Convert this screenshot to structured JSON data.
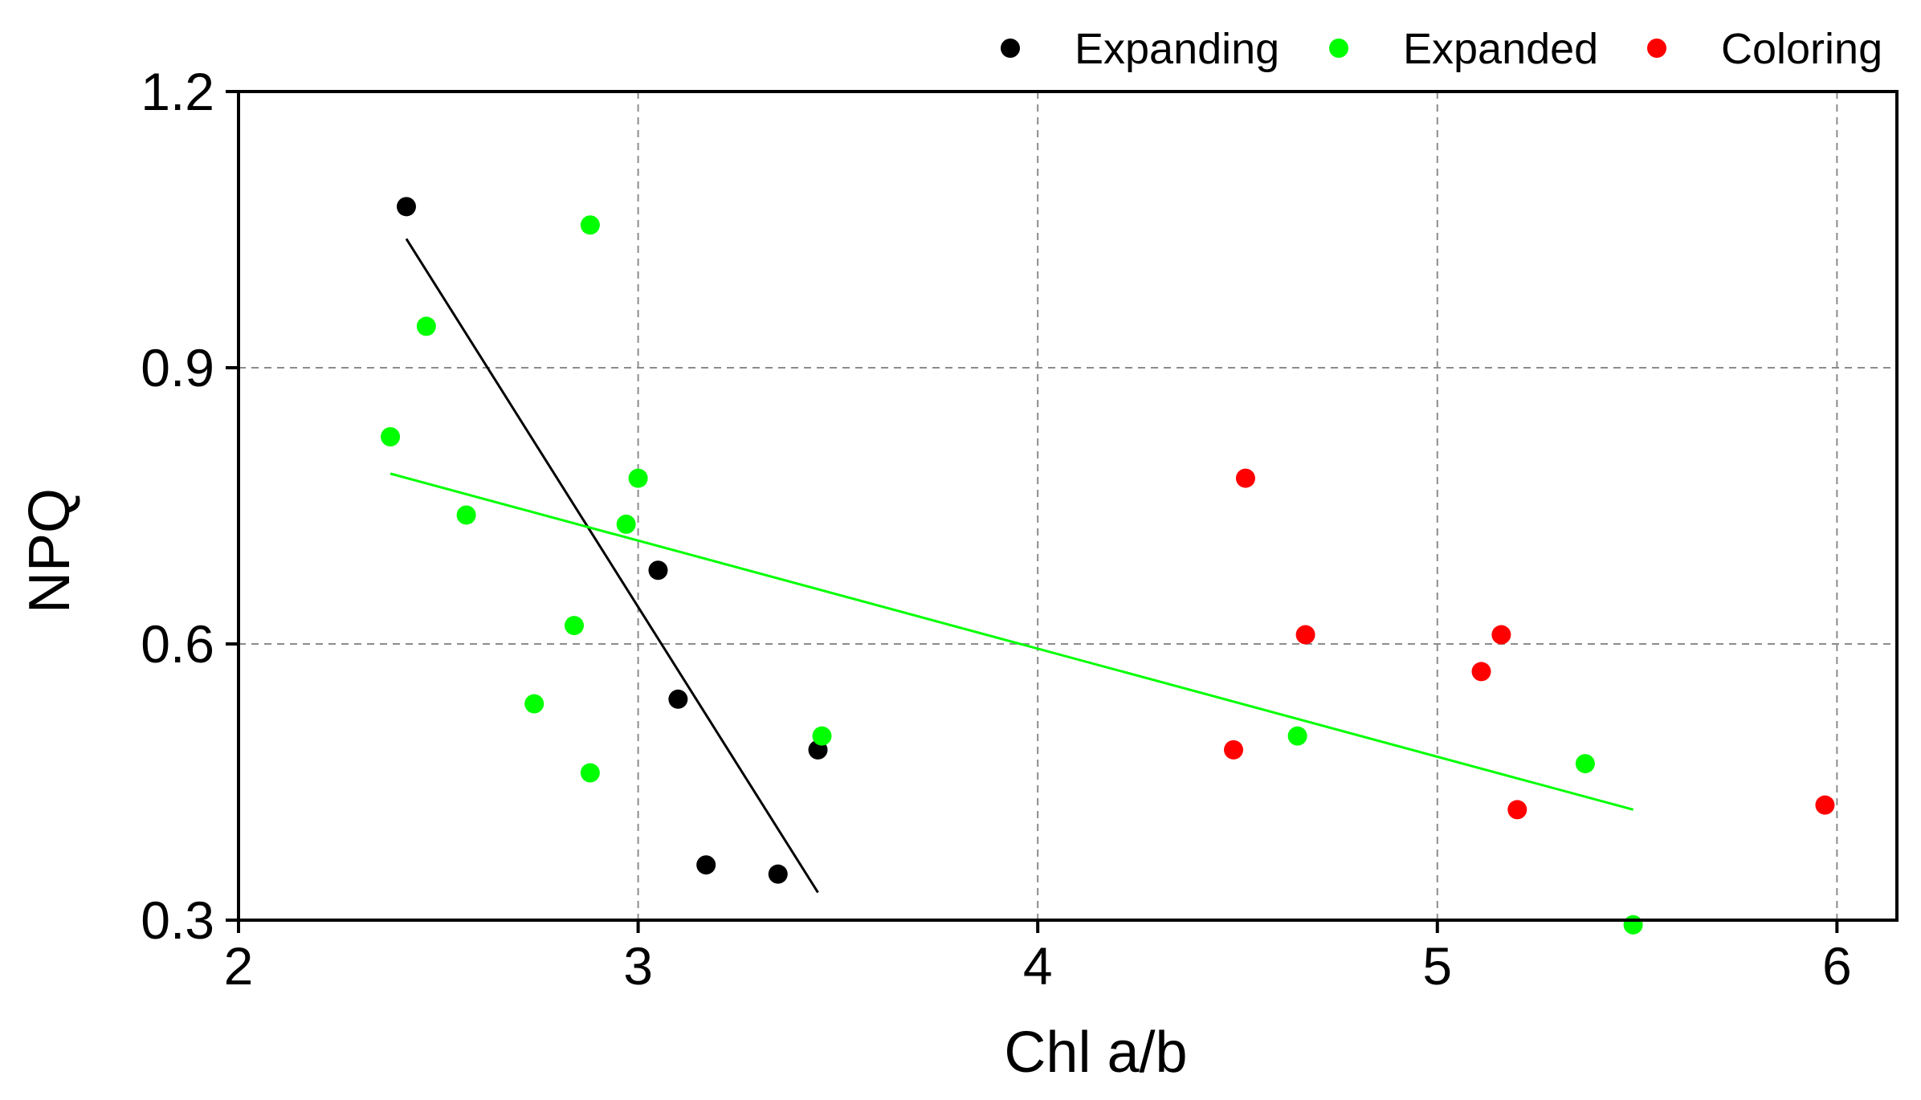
{
  "chart_data": {
    "type": "scatter",
    "title": "",
    "xlabel": "Chl a/b",
    "ylabel": "NPQ",
    "xlim": [
      2,
      6.15
    ],
    "ylim": [
      0.3,
      1.2
    ],
    "xticks": [
      2,
      3,
      4,
      5,
      6
    ],
    "yticks": [
      0.3,
      0.6,
      0.9,
      1.2
    ],
    "xtick_labels": [
      "2",
      "3",
      "4",
      "5",
      "6"
    ],
    "ytick_labels": [
      "0.3",
      "0.6",
      "0.9",
      "1.2"
    ],
    "grid": true,
    "legend_position": "top-right",
    "series": [
      {
        "name": "Expanding",
        "color": "#000000",
        "points": [
          [
            2.42,
            1.075
          ],
          [
            3.05,
            0.68
          ],
          [
            3.1,
            0.54
          ],
          [
            3.17,
            0.36
          ],
          [
            3.35,
            0.35
          ],
          [
            3.45,
            0.485
          ]
        ],
        "fit": [
          [
            2.42,
            1.04
          ],
          [
            3.45,
            0.33
          ]
        ]
      },
      {
        "name": "Expanded",
        "color": "#00ff00",
        "points": [
          [
            2.38,
            0.825
          ],
          [
            2.47,
            0.945
          ],
          [
            2.57,
            0.74
          ],
          [
            2.74,
            0.535
          ],
          [
            2.84,
            0.62
          ],
          [
            2.88,
            1.055
          ],
          [
            2.88,
            0.46
          ],
          [
            2.97,
            0.73
          ],
          [
            3.0,
            0.78
          ],
          [
            3.46,
            0.5
          ],
          [
            4.65,
            0.5
          ],
          [
            5.37,
            0.47
          ],
          [
            5.49,
            0.295
          ]
        ],
        "fit": [
          [
            2.38,
            0.785
          ],
          [
            5.49,
            0.42
          ]
        ]
      },
      {
        "name": "Coloring",
        "color": "#ff0000",
        "points": [
          [
            4.49,
            0.485
          ],
          [
            4.52,
            0.78
          ],
          [
            4.67,
            0.61
          ],
          [
            5.11,
            0.57
          ],
          [
            5.16,
            0.61
          ],
          [
            5.2,
            0.42
          ],
          [
            5.97,
            0.425
          ]
        ]
      }
    ]
  }
}
